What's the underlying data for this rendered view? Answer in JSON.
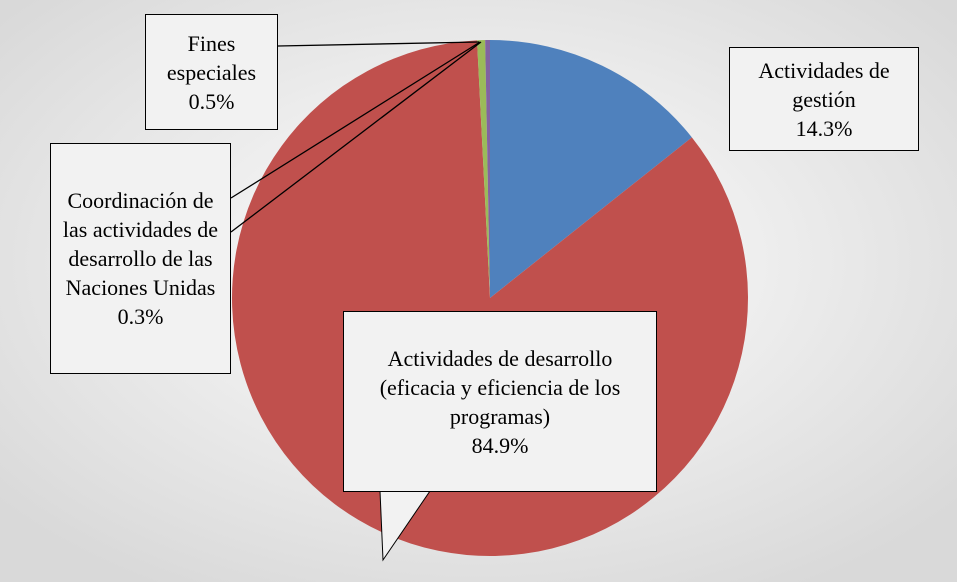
{
  "chart_data": {
    "type": "pie",
    "categories": [
      "Actividades de gestión",
      "Actividades de desarrollo (eficacia y eficiencia de los programas)",
      "Fines especiales",
      "Coordinación de las actividades de desarrollo de las Naciones Unidas"
    ],
    "values": [
      14.3,
      84.9,
      0.5,
      0.3
    ],
    "value_labels": [
      "14.3%",
      "84.9%",
      "0.5%",
      "0.3%"
    ],
    "colors": [
      "#4f81bd",
      "#c0504d",
      "#9bbb59",
      "#8064a2"
    ]
  }
}
